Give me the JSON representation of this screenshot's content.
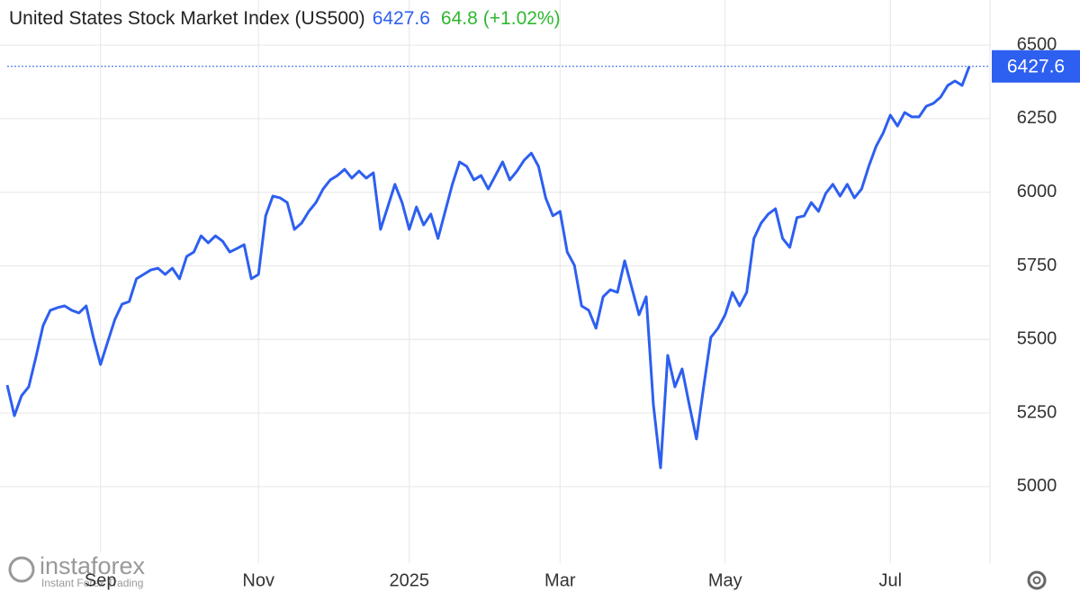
{
  "chart_data": {
    "type": "line",
    "title": "United States Stock Market Index (US500)",
    "change": 64.8,
    "change_percent": "(+1.02%)",
    "categories": [
      null,
      null,
      null,
      null,
      null,
      null,
      null,
      null,
      null,
      null,
      null,
      null,
      null,
      "Sep",
      null,
      null,
      null,
      null,
      null,
      null,
      null,
      null,
      null,
      null,
      null,
      null,
      null,
      null,
      null,
      null,
      null,
      null,
      null,
      null,
      null,
      "Nov",
      null,
      null,
      null,
      null,
      null,
      null,
      null,
      null,
      null,
      null,
      null,
      null,
      null,
      null,
      null,
      null,
      null,
      null,
      null,
      null,
      "2025",
      null,
      null,
      null,
      null,
      null,
      null,
      null,
      null,
      null,
      null,
      null,
      null,
      null,
      null,
      null,
      null,
      null,
      null,
      null,
      null,
      "Mar",
      null,
      null,
      null,
      null,
      null,
      null,
      null,
      null,
      null,
      null,
      null,
      null,
      null,
      null,
      null,
      null,
      null,
      null,
      null,
      null,
      null,
      null,
      "May",
      null,
      null,
      null,
      null,
      null,
      null,
      null,
      null,
      null,
      null,
      null,
      null,
      null,
      null,
      null,
      null,
      null,
      null,
      null,
      null,
      null,
      null,
      "Jul",
      null,
      null,
      null,
      null,
      null,
      null,
      null,
      null,
      null,
      null,
      null
    ],
    "series": [
      {
        "name": "US500",
        "color": "#2d5ff0",
        "values": [
          5345,
          5241,
          5309,
          5339,
          5440,
          5547,
          5599,
          5608,
          5614,
          5599,
          5590,
          5614,
          5507,
          5415,
          5492,
          5568,
          5620,
          5629,
          5706,
          5721,
          5736,
          5742,
          5721,
          5742,
          5706,
          5782,
          5797,
          5852,
          5828,
          5852,
          5834,
          5797,
          5809,
          5822,
          5706,
          5721,
          5920,
          5987,
          5981,
          5965,
          5874,
          5895,
          5935,
          5965,
          6011,
          6042,
          6057,
          6078,
          6048,
          6072,
          6048,
          6066,
          5874,
          5950,
          6027,
          5965,
          5874,
          5950,
          5889,
          5926,
          5843,
          5935,
          6027,
          6103,
          6088,
          6042,
          6057,
          6011,
          6057,
          6103,
          6042,
          6072,
          6109,
          6133,
          6088,
          5981,
          5920,
          5935,
          5797,
          5752,
          5614,
          5599,
          5538,
          5645,
          5669,
          5660,
          5767,
          5675,
          5584,
          5645,
          5278,
          5064,
          5446,
          5339,
          5400,
          5278,
          5162,
          5339,
          5507,
          5538,
          5584,
          5660,
          5614,
          5660,
          5843,
          5895,
          5926,
          5944,
          5843,
          5813,
          5914,
          5920,
          5965,
          5935,
          5996,
          6027,
          5987,
          6027,
          5981,
          6011,
          6088,
          6155,
          6201,
          6262,
          6225,
          6271,
          6256,
          6256,
          6292,
          6302,
          6323,
          6363,
          6378,
          6363,
          6427.6
        ]
      }
    ],
    "change_color": "#2eb82e",
    "ylim": [
      4740,
      6650
    ],
    "yticks": [
      5000,
      5250,
      5500,
      5750,
      6000,
      6250,
      6500
    ],
    "grid": true,
    "watermark": {
      "brand": "instaforex",
      "tagline": "Instant Forex Trading"
    }
  }
}
